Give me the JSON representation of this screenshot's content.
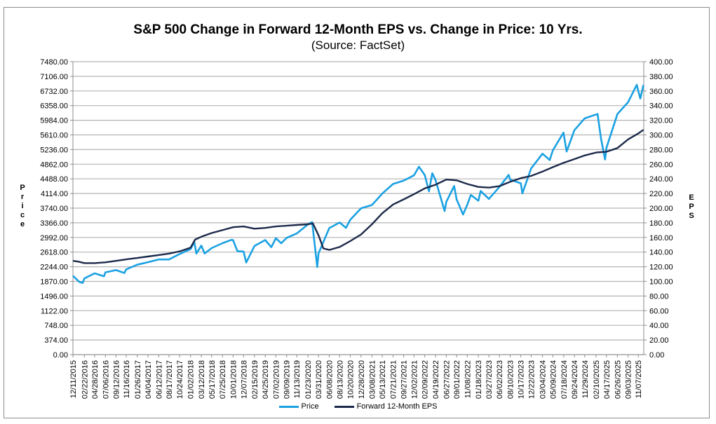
{
  "chart_data": {
    "type": "line",
    "title": "S&P 500 Change in Forward 12-Month EPS vs. Change in Price: 10 Yrs.",
    "subtitle": "(Source: FactSet)",
    "ylabel_left": "Price",
    "ylabel_right": "EPS",
    "ylim_left": [
      0,
      7480
    ],
    "ylim_right": [
      0,
      400
    ],
    "yticks_left": [
      "0.00",
      "374.00",
      "748.00",
      "1122.00",
      "1496.00",
      "1870.00",
      "2244.00",
      "2618.00",
      "2992.00",
      "3366.00",
      "3740.00",
      "4114.00",
      "4488.00",
      "4862.00",
      "5236.00",
      "5610.00",
      "5984.00",
      "6358.00",
      "6732.00",
      "7106.00",
      "7480.00"
    ],
    "yticks_right": [
      "0.00",
      "20.00",
      "40.00",
      "60.00",
      "80.00",
      "100.00",
      "120.00",
      "140.00",
      "160.00",
      "180.00",
      "200.00",
      "220.00",
      "240.00",
      "260.00",
      "280.00",
      "300.00",
      "320.00",
      "340.00",
      "360.00",
      "380.00",
      "400.00"
    ],
    "xticks": [
      "12/11/2015",
      "02/22/2016",
      "04/28/2016",
      "07/06/2016",
      "09/12/2016",
      "11/16/2016",
      "01/26/2017",
      "04/04/2017",
      "06/12/2017",
      "08/17/2017",
      "10/24/2017",
      "01/02/2018",
      "03/12/2018",
      "05/17/2018",
      "07/25/2018",
      "10/01/2018",
      "12/07/2018",
      "02/15/2019",
      "04/25/2019",
      "07/02/2019",
      "09/09/2019",
      "11/13/2019",
      "01/23/2020",
      "03/31/2020",
      "06/08/2020",
      "08/13/2020",
      "10/20/2020",
      "12/28/2020",
      "03/08/2021",
      "05/13/2021",
      "07/21/2021",
      "09/27/2021",
      "12/02/2021",
      "02/09/2022",
      "04/19/2022",
      "06/27/2022",
      "09/01/2022",
      "11/08/2022",
      "01/18/2023",
      "03/27/2023",
      "06/02/2023",
      "08/10/2023",
      "10/17/2023",
      "12/22/2023",
      "03/04/2024",
      "05/09/2024",
      "07/18/2024",
      "09/24/2024",
      "11/29/2024",
      "02/10/2025",
      "04/17/2025",
      "06/26/2025",
      "09/03/2025",
      "11/07/2025"
    ],
    "grid": true,
    "legend_placement": "bottom",
    "series": [
      {
        "name": "Price",
        "axis": "left",
        "color": "#1ba1e2",
        "points": [
          [
            "2015-12-11",
            2012
          ],
          [
            "2016-01-20",
            1859
          ],
          [
            "2016-02-11",
            1829
          ],
          [
            "2016-02-22",
            1945
          ],
          [
            "2016-04-28",
            2075
          ],
          [
            "2016-06-27",
            2000
          ],
          [
            "2016-07-06",
            2100
          ],
          [
            "2016-09-12",
            2159
          ],
          [
            "2016-11-04",
            2085
          ],
          [
            "2016-11-16",
            2177
          ],
          [
            "2017-01-26",
            2296
          ],
          [
            "2017-04-04",
            2360
          ],
          [
            "2017-06-12",
            2430
          ],
          [
            "2017-08-17",
            2430
          ],
          [
            "2017-10-24",
            2569
          ],
          [
            "2018-01-02",
            2695
          ],
          [
            "2018-01-26",
            2872
          ],
          [
            "2018-02-08",
            2581
          ],
          [
            "2018-03-12",
            2783
          ],
          [
            "2018-04-02",
            2582
          ],
          [
            "2018-05-17",
            2720
          ],
          [
            "2018-07-25",
            2846
          ],
          [
            "2018-09-20",
            2930
          ],
          [
            "2018-10-01",
            2924
          ],
          [
            "2018-10-29",
            2641
          ],
          [
            "2018-12-07",
            2633
          ],
          [
            "2018-12-24",
            2351
          ],
          [
            "2019-02-15",
            2775
          ],
          [
            "2019-04-25",
            2926
          ],
          [
            "2019-06-03",
            2744
          ],
          [
            "2019-07-02",
            2973
          ],
          [
            "2019-08-05",
            2844
          ],
          [
            "2019-09-09",
            2979
          ],
          [
            "2019-11-13",
            3094
          ],
          [
            "2020-01-23",
            3325
          ],
          [
            "2020-02-19",
            3386
          ],
          [
            "2020-03-23",
            2237
          ],
          [
            "2020-03-31",
            2585
          ],
          [
            "2020-06-08",
            3232
          ],
          [
            "2020-08-13",
            3373
          ],
          [
            "2020-09-23",
            3237
          ],
          [
            "2020-10-20",
            3443
          ],
          [
            "2020-12-28",
            3735
          ],
          [
            "2021-03-08",
            3821
          ],
          [
            "2021-05-13",
            4112
          ],
          [
            "2021-07-21",
            4358
          ],
          [
            "2021-09-27",
            4443
          ],
          [
            "2021-12-02",
            4577
          ],
          [
            "2022-01-03",
            4797
          ],
          [
            "2022-02-09",
            4587
          ],
          [
            "2022-03-08",
            4170
          ],
          [
            "2022-03-29",
            4631
          ],
          [
            "2022-04-19",
            4462
          ],
          [
            "2022-06-16",
            3667
          ],
          [
            "2022-06-27",
            3900
          ],
          [
            "2022-08-16",
            4305
          ],
          [
            "2022-09-01",
            3966
          ],
          [
            "2022-10-12",
            3577
          ],
          [
            "2022-11-08",
            3828
          ],
          [
            "2022-12-01",
            4076
          ],
          [
            "2023-01-18",
            3929
          ],
          [
            "2023-02-02",
            4179
          ],
          [
            "2023-03-27",
            3977
          ],
          [
            "2023-06-02",
            4282
          ],
          [
            "2023-07-31",
            4589
          ],
          [
            "2023-08-10",
            4468
          ],
          [
            "2023-10-17",
            4373
          ],
          [
            "2023-10-27",
            4117
          ],
          [
            "2023-12-22",
            4754
          ],
          [
            "2024-03-04",
            5130
          ],
          [
            "2024-04-19",
            4967
          ],
          [
            "2024-05-09",
            5214
          ],
          [
            "2024-07-16",
            5667
          ],
          [
            "2024-08-05",
            5186
          ],
          [
            "2024-09-24",
            5732
          ],
          [
            "2024-11-29",
            6032
          ],
          [
            "2025-02-19",
            6144
          ],
          [
            "2025-03-13",
            5521
          ],
          [
            "2025-04-08",
            4982
          ],
          [
            "2025-04-17",
            5282
          ],
          [
            "2025-06-26",
            6141
          ],
          [
            "2025-09-03",
            6448
          ],
          [
            "2025-10-28",
            6890
          ],
          [
            "2025-11-07",
            6728
          ],
          [
            "2025-11-20",
            6538
          ],
          [
            "2025-12-10",
            6886
          ]
        ]
      },
      {
        "name": "Forward 12-Month EPS",
        "axis": "right",
        "color": "#1c2a4a",
        "points": [
          [
            "2015-12-11",
            128
          ],
          [
            "2016-01-15",
            127
          ],
          [
            "2016-02-22",
            125
          ],
          [
            "2016-04-28",
            125
          ],
          [
            "2016-07-06",
            126
          ],
          [
            "2016-09-12",
            128
          ],
          [
            "2016-11-16",
            130
          ],
          [
            "2017-01-26",
            132
          ],
          [
            "2017-04-04",
            134
          ],
          [
            "2017-06-12",
            136
          ],
          [
            "2017-08-17",
            138
          ],
          [
            "2017-10-24",
            141
          ],
          [
            "2018-01-02",
            146
          ],
          [
            "2018-01-31",
            157
          ],
          [
            "2018-03-12",
            161
          ],
          [
            "2018-05-17",
            166
          ],
          [
            "2018-07-25",
            170
          ],
          [
            "2018-10-01",
            174
          ],
          [
            "2018-12-07",
            175
          ],
          [
            "2019-02-15",
            172
          ],
          [
            "2019-04-25",
            173
          ],
          [
            "2019-07-02",
            175
          ],
          [
            "2019-09-09",
            176
          ],
          [
            "2019-11-13",
            177
          ],
          [
            "2020-01-23",
            178
          ],
          [
            "2020-02-24",
            179
          ],
          [
            "2020-03-31",
            163
          ],
          [
            "2020-05-01",
            145
          ],
          [
            "2020-06-08",
            143
          ],
          [
            "2020-08-13",
            147
          ],
          [
            "2020-10-20",
            155
          ],
          [
            "2020-12-28",
            164
          ],
          [
            "2021-03-08",
            178
          ],
          [
            "2021-05-13",
            193
          ],
          [
            "2021-07-21",
            205
          ],
          [
            "2021-09-27",
            212
          ],
          [
            "2021-12-02",
            219
          ],
          [
            "2022-02-09",
            227
          ],
          [
            "2022-04-19",
            232
          ],
          [
            "2022-06-27",
            239
          ],
          [
            "2022-09-01",
            238
          ],
          [
            "2022-11-08",
            233
          ],
          [
            "2023-01-18",
            229
          ],
          [
            "2023-03-27",
            228
          ],
          [
            "2023-06-02",
            230
          ],
          [
            "2023-08-10",
            236
          ],
          [
            "2023-10-17",
            241
          ],
          [
            "2023-12-22",
            244
          ],
          [
            "2024-03-04",
            250
          ],
          [
            "2024-05-09",
            256
          ],
          [
            "2024-07-18",
            262
          ],
          [
            "2024-09-24",
            267
          ],
          [
            "2024-11-29",
            272
          ],
          [
            "2025-02-10",
            276
          ],
          [
            "2025-04-17",
            277
          ],
          [
            "2025-06-26",
            282
          ],
          [
            "2025-09-03",
            294
          ],
          [
            "2025-11-07",
            302
          ],
          [
            "2025-12-10",
            307
          ]
        ]
      }
    ]
  },
  "legend": {
    "price": "Price",
    "eps": "Forward 12-Month EPS"
  },
  "axis_letters_left": [
    "P",
    "r",
    "i",
    "c",
    "e"
  ],
  "axis_letters_right": [
    "E",
    "P",
    "S"
  ]
}
